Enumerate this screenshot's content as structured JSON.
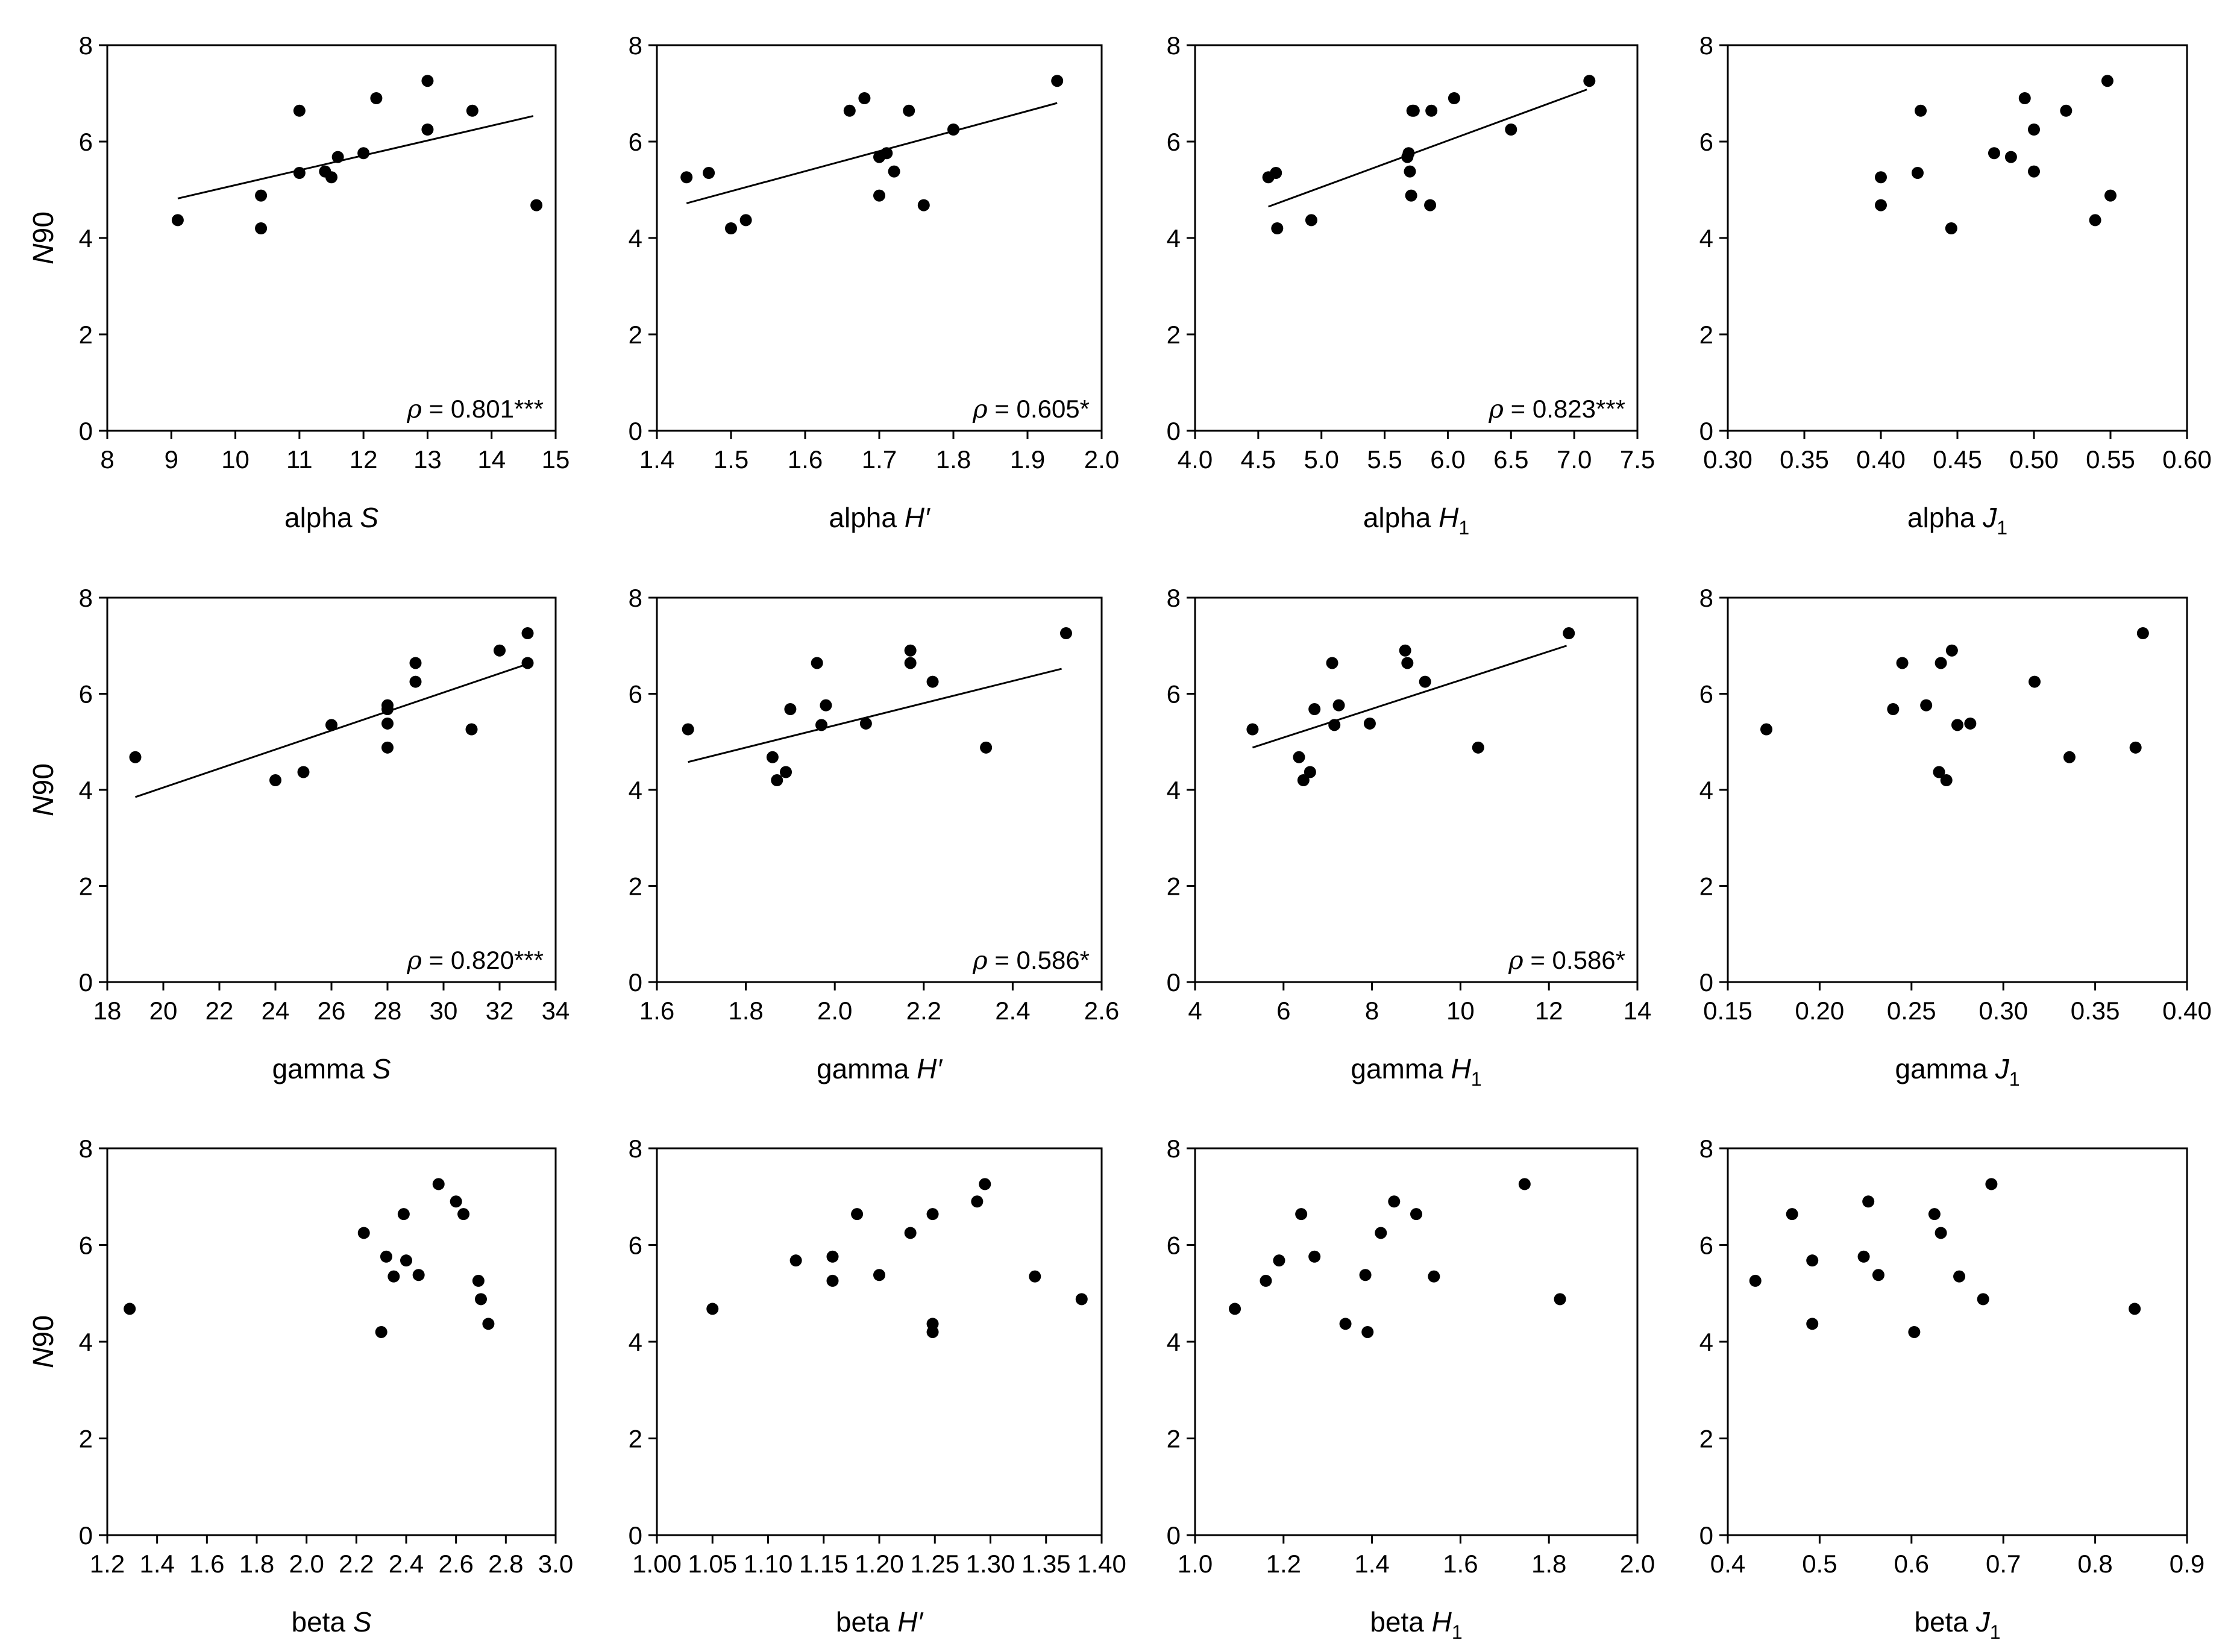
{
  "figure": {
    "ylabel": "N90"
  },
  "chart_data": [
    {
      "type": "scatter",
      "row": 0,
      "col": 0,
      "xlabel_prefix": "alpha",
      "xlabel_var": "S",
      "xlabel_sub": "",
      "xlabel_prime": false,
      "xlim": [
        8,
        15
      ],
      "xticks": [
        "8",
        "9",
        "10",
        "11",
        "12",
        "13",
        "14",
        "15"
      ],
      "ylim": [
        0,
        8
      ],
      "yticks": [
        "0",
        "2",
        "4",
        "6",
        "8"
      ],
      "show_ylabel": true,
      "x": [
        9.1,
        10.4,
        10.4,
        11.0,
        11.0,
        11.4,
        11.5,
        11.6,
        12.0,
        12.2,
        13.0,
        13.0,
        13.7,
        14.7
      ],
      "y": [
        4.37,
        4.88,
        4.2,
        6.64,
        5.35,
        5.38,
        5.26,
        5.68,
        5.76,
        6.9,
        7.26,
        6.25,
        6.64,
        4.68
      ],
      "fit": [
        [
          9.1,
          4.82
        ],
        [
          14.65,
          6.53
        ]
      ],
      "annotation": "ρ = 0.801***"
    },
    {
      "type": "scatter",
      "row": 0,
      "col": 1,
      "xlabel_prefix": "alpha",
      "xlabel_var": "H",
      "xlabel_sub": "",
      "xlabel_prime": true,
      "xlim": [
        1.4,
        2.0
      ],
      "xticks": [
        "1.4",
        "1.5",
        "1.6",
        "1.7",
        "1.8",
        "1.9",
        "2.0"
      ],
      "ylim": [
        0,
        8
      ],
      "yticks": [
        "0",
        "2",
        "4",
        "6",
        "8"
      ],
      "show_ylabel": false,
      "x": [
        1.44,
        1.47,
        1.5,
        1.52,
        1.66,
        1.68,
        1.7,
        1.7,
        1.71,
        1.72,
        1.74,
        1.76,
        1.8,
        1.94
      ],
      "y": [
        5.26,
        5.35,
        4.2,
        4.37,
        6.64,
        6.9,
        5.68,
        4.88,
        5.76,
        5.38,
        6.64,
        4.68,
        6.25,
        7.26
      ],
      "fit": [
        [
          1.44,
          4.72
        ],
        [
          1.94,
          6.8
        ]
      ],
      "annotation": "ρ = 0.605*"
    },
    {
      "type": "scatter",
      "row": 0,
      "col": 2,
      "xlabel_prefix": "alpha",
      "xlabel_var": "H",
      "xlabel_sub": "1",
      "xlabel_prime": false,
      "xlim": [
        4.0,
        7.5
      ],
      "xticks": [
        "4.0",
        "4.5",
        "5.0",
        "5.5",
        "6.0",
        "6.5",
        "7.0",
        "7.5"
      ],
      "ylim": [
        0,
        8
      ],
      "yticks": [
        "0",
        "2",
        "4",
        "6",
        "8"
      ],
      "show_ylabel": false,
      "x": [
        4.58,
        4.64,
        4.65,
        4.92,
        5.68,
        5.69,
        5.7,
        5.71,
        5.72,
        5.73,
        5.86,
        5.87,
        6.05,
        6.5,
        7.12
      ],
      "y": [
        5.26,
        5.35,
        4.2,
        4.37,
        5.68,
        5.76,
        5.38,
        4.88,
        6.64,
        6.64,
        4.68,
        6.64,
        6.9,
        6.25,
        7.26
      ],
      "fit": [
        [
          4.58,
          4.65
        ],
        [
          7.1,
          7.08
        ]
      ],
      "annotation": "ρ = 0.823***"
    },
    {
      "type": "scatter",
      "row": 0,
      "col": 3,
      "xlabel_prefix": "alpha",
      "xlabel_var": "J",
      "xlabel_sub": "1",
      "xlabel_prime": false,
      "xlim": [
        0.3,
        0.6
      ],
      "xticks": [
        "0.30",
        "0.35",
        "0.40",
        "0.45",
        "0.50",
        "0.55",
        "0.60"
      ],
      "ylim": [
        0,
        8
      ],
      "yticks": [
        "0",
        "2",
        "4",
        "6",
        "8"
      ],
      "show_ylabel": false,
      "x": [
        0.4,
        0.4,
        0.424,
        0.426,
        0.446,
        0.474,
        0.485,
        0.494,
        0.5,
        0.5,
        0.521,
        0.54,
        0.548,
        0.55
      ],
      "y": [
        5.26,
        4.68,
        5.35,
        6.64,
        4.2,
        5.76,
        5.68,
        6.9,
        6.25,
        5.38,
        6.64,
        4.37,
        7.26,
        4.88
      ],
      "fit": null,
      "annotation": ""
    },
    {
      "type": "scatter",
      "row": 1,
      "col": 0,
      "xlabel_prefix": "gamma",
      "xlabel_var": "S",
      "xlabel_sub": "",
      "xlabel_prime": false,
      "xlim": [
        18,
        34
      ],
      "xticks": [
        "18",
        "20",
        "22",
        "24",
        "26",
        "28",
        "30",
        "32",
        "34"
      ],
      "ylim": [
        0,
        8
      ],
      "yticks": [
        "0",
        "2",
        "4",
        "6",
        "8"
      ],
      "show_ylabel": true,
      "x": [
        19,
        24,
        25,
        26,
        28,
        28,
        28,
        28,
        29,
        29,
        31,
        32,
        33,
        33
      ],
      "y": [
        4.68,
        4.2,
        4.37,
        5.35,
        5.76,
        5.68,
        5.38,
        4.88,
        6.64,
        6.25,
        5.26,
        6.9,
        7.26,
        6.64
      ],
      "fit": [
        [
          19,
          3.85
        ],
        [
          33,
          6.62
        ]
      ],
      "annotation": "ρ = 0.820***"
    },
    {
      "type": "scatter",
      "row": 1,
      "col": 1,
      "xlabel_prefix": "gamma",
      "xlabel_var": "H",
      "xlabel_sub": "",
      "xlabel_prime": true,
      "xlim": [
        1.6,
        2.6
      ],
      "xticks": [
        "1.6",
        "1.8",
        "2.0",
        "2.2",
        "2.4",
        "2.6"
      ],
      "ylim": [
        0,
        8
      ],
      "yticks": [
        "0",
        "2",
        "4",
        "6",
        "8"
      ],
      "show_ylabel": false,
      "x": [
        1.67,
        1.86,
        1.87,
        1.89,
        1.9,
        1.96,
        1.97,
        1.98,
        2.07,
        2.17,
        2.17,
        2.22,
        2.34,
        2.52
      ],
      "y": [
        5.26,
        4.68,
        4.2,
        4.37,
        5.68,
        6.64,
        5.35,
        5.76,
        5.38,
        6.9,
        6.64,
        6.25,
        4.88,
        7.26
      ],
      "fit": [
        [
          1.67,
          4.58
        ],
        [
          2.51,
          6.52
        ]
      ],
      "annotation": "ρ = 0.586*"
    },
    {
      "type": "scatter",
      "row": 1,
      "col": 2,
      "xlabel_prefix": "gamma",
      "xlabel_var": "H",
      "xlabel_sub": "1",
      "xlabel_prime": false,
      "xlim": [
        4,
        14
      ],
      "xticks": [
        "4",
        "6",
        "8",
        "10",
        "12",
        "14"
      ],
      "ylim": [
        0,
        8
      ],
      "yticks": [
        "0",
        "2",
        "4",
        "6",
        "8"
      ],
      "show_ylabel": false,
      "x": [
        5.3,
        6.35,
        6.45,
        6.6,
        6.7,
        7.1,
        7.15,
        7.25,
        7.95,
        8.75,
        8.8,
        9.2,
        10.4,
        12.45
      ],
      "y": [
        5.26,
        4.68,
        4.2,
        4.37,
        5.68,
        6.64,
        5.35,
        5.76,
        5.38,
        6.9,
        6.64,
        6.25,
        4.88,
        7.26
      ],
      "fit": [
        [
          5.3,
          4.88
        ],
        [
          12.4,
          7.0
        ]
      ],
      "annotation": "ρ = 0.586*"
    },
    {
      "type": "scatter",
      "row": 1,
      "col": 3,
      "xlabel_prefix": "gamma",
      "xlabel_var": "J",
      "xlabel_sub": "1",
      "xlabel_prime": false,
      "xlim": [
        0.15,
        0.4
      ],
      "xticks": [
        "0.15",
        "0.20",
        "0.25",
        "0.30",
        "0.35",
        "0.40"
      ],
      "ylim": [
        0,
        8
      ],
      "yticks": [
        "0",
        "2",
        "4",
        "6",
        "8"
      ],
      "show_ylabel": false,
      "x": [
        0.171,
        0.24,
        0.245,
        0.258,
        0.265,
        0.266,
        0.269,
        0.272,
        0.275,
        0.282,
        0.317,
        0.336,
        0.372,
        0.376
      ],
      "y": [
        5.26,
        5.68,
        6.64,
        5.76,
        4.37,
        6.64,
        4.2,
        6.9,
        5.35,
        5.38,
        6.25,
        4.68,
        4.88,
        7.26
      ],
      "fit": null,
      "annotation": ""
    },
    {
      "type": "scatter",
      "row": 2,
      "col": 0,
      "xlabel_prefix": "beta",
      "xlabel_var": "S",
      "xlabel_sub": "",
      "xlabel_prime": false,
      "xlim": [
        1.2,
        3.0
      ],
      "xticks": [
        "1.2",
        "1.4",
        "1.6",
        "1.8",
        "2.0",
        "2.2",
        "2.4",
        "2.6",
        "2.8",
        "3.0"
      ],
      "ylim": [
        0,
        8
      ],
      "yticks": [
        "0",
        "2",
        "4",
        "6",
        "8"
      ],
      "show_ylabel": true,
      "x": [
        1.29,
        2.23,
        2.3,
        2.32,
        2.35,
        2.39,
        2.4,
        2.45,
        2.53,
        2.6,
        2.63,
        2.69,
        2.7,
        2.73
      ],
      "y": [
        4.68,
        6.25,
        4.2,
        5.76,
        5.35,
        6.64,
        5.68,
        5.38,
        7.26,
        6.9,
        6.64,
        5.26,
        4.88,
        4.37
      ],
      "fit": null,
      "annotation": ""
    },
    {
      "type": "scatter",
      "row": 2,
      "col": 1,
      "xlabel_prefix": "beta",
      "xlabel_var": "H",
      "xlabel_sub": "",
      "xlabel_prime": true,
      "xlim": [
        1.0,
        1.4
      ],
      "xticks": [
        "1.00",
        "1.05",
        "1.10",
        "1.15",
        "1.20",
        "1.25",
        "1.30",
        "1.35",
        "1.40"
      ],
      "ylim": [
        0,
        8
      ],
      "yticks": [
        "0",
        "2",
        "4",
        "6",
        "8"
      ],
      "show_ylabel": false,
      "x": [
        1.05,
        1.125,
        1.158,
        1.158,
        1.18,
        1.2,
        1.228,
        1.248,
        1.248,
        1.248,
        1.288,
        1.295,
        1.34,
        1.382
      ],
      "y": [
        4.68,
        5.68,
        5.76,
        5.26,
        6.64,
        5.38,
        6.25,
        6.64,
        4.37,
        4.2,
        6.9,
        7.26,
        5.35,
        4.88
      ],
      "fit": null,
      "annotation": ""
    },
    {
      "type": "scatter",
      "row": 2,
      "col": 2,
      "xlabel_prefix": "beta",
      "xlabel_var": "H",
      "xlabel_sub": "1",
      "xlabel_prime": false,
      "xlim": [
        1.0,
        2.0
      ],
      "xticks": [
        "1.0",
        "1.2",
        "1.4",
        "1.6",
        "1.8",
        "2.0"
      ],
      "ylim": [
        0,
        8
      ],
      "yticks": [
        "0",
        "2",
        "4",
        "6",
        "8"
      ],
      "show_ylabel": false,
      "x": [
        1.09,
        1.16,
        1.19,
        1.24,
        1.27,
        1.34,
        1.385,
        1.39,
        1.42,
        1.45,
        1.5,
        1.54,
        1.745,
        1.825
      ],
      "y": [
        4.68,
        5.26,
        5.68,
        6.64,
        5.76,
        4.37,
        5.38,
        4.2,
        6.25,
        6.9,
        6.64,
        5.35,
        7.26,
        4.88
      ],
      "fit": null,
      "annotation": ""
    },
    {
      "type": "scatter",
      "row": 2,
      "col": 3,
      "xlabel_prefix": "beta",
      "xlabel_var": "J",
      "xlabel_sub": "1",
      "xlabel_prime": false,
      "xlim": [
        0.4,
        0.9
      ],
      "xticks": [
        "0.4",
        "0.5",
        "0.6",
        "0.7",
        "0.8",
        "0.9"
      ],
      "ylim": [
        0,
        8
      ],
      "yticks": [
        "0",
        "2",
        "4",
        "6",
        "8"
      ],
      "show_ylabel": false,
      "x": [
        0.43,
        0.47,
        0.492,
        0.492,
        0.548,
        0.553,
        0.564,
        0.603,
        0.625,
        0.632,
        0.652,
        0.678,
        0.687,
        0.843
      ],
      "y": [
        5.26,
        6.64,
        5.68,
        4.37,
        5.76,
        6.9,
        5.38,
        4.2,
        6.64,
        6.25,
        5.35,
        4.88,
        7.26,
        4.68
      ],
      "fit": null,
      "annotation": ""
    }
  ]
}
